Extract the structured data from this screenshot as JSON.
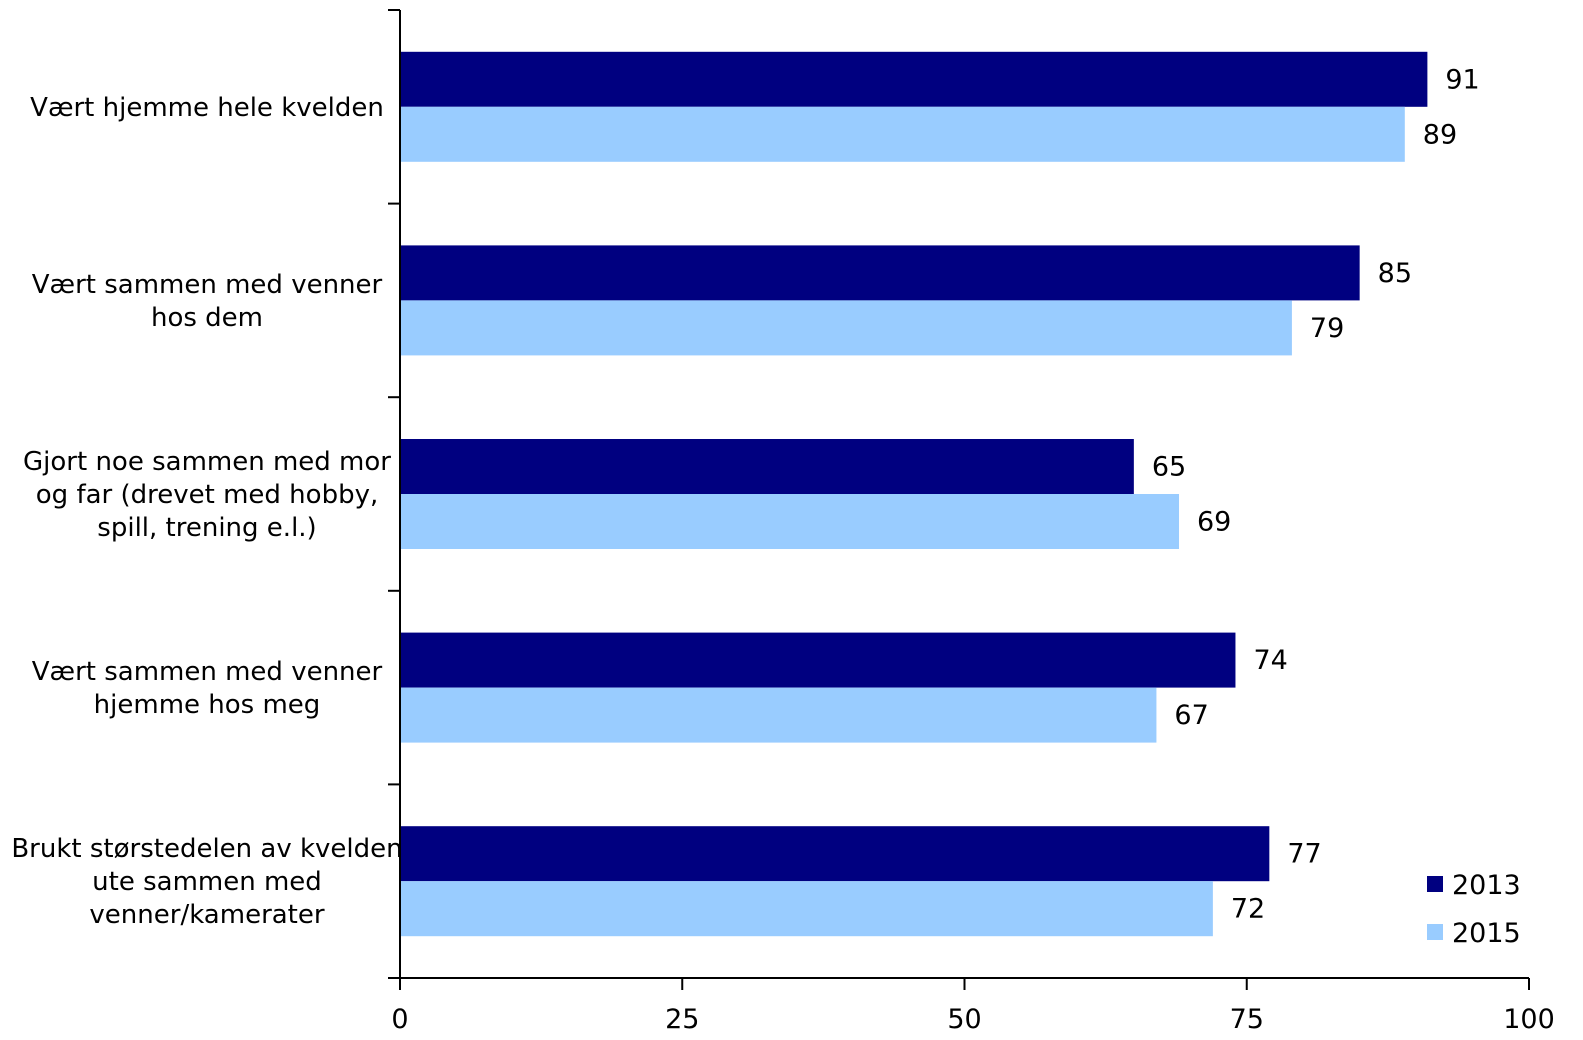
{
  "chart_data": {
    "type": "bar",
    "orientation": "horizontal",
    "categories": [
      [
        "Vært hjemme hele kvelden"
      ],
      [
        "Vært sammen med venner",
        "hos dem"
      ],
      [
        "Gjort noe sammen med mor",
        "og far (drevet med hobby,",
        "spill, trening e.l.)"
      ],
      [
        "Vært sammen med venner",
        "hjemme hos meg"
      ],
      [
        "Brukt størstedelen av kvelden",
        "ute sammen med",
        "venner/kamerater"
      ]
    ],
    "series": [
      {
        "name": "2013",
        "color": "#000080",
        "values": [
          91,
          85,
          65,
          74,
          77
        ]
      },
      {
        "name": "2015",
        "color": "#99ccff",
        "values": [
          89,
          79,
          69,
          67,
          72
        ]
      }
    ],
    "xlim": [
      0,
      100
    ],
    "xticks": [
      "0",
      "25",
      "50",
      "75",
      "100"
    ],
    "title": "",
    "xlabel": "",
    "ylabel": "",
    "grid": false,
    "legend_position": "bottom-right",
    "axis_color": "#000000"
  }
}
